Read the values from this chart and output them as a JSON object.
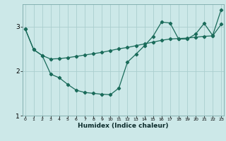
{
  "xlabel": "Humidex (Indice chaleur)",
  "background_color": "#cce8e8",
  "grid_color": "#aacece",
  "line_color": "#1a6b5a",
  "line1_x": [
    0,
    1,
    2,
    3,
    4,
    5,
    6,
    7,
    8,
    9,
    10,
    11,
    12,
    13,
    14,
    15,
    16,
    17,
    18,
    19,
    20,
    21,
    22,
    23
  ],
  "line1_y": [
    2.95,
    2.48,
    2.35,
    2.27,
    2.28,
    2.3,
    2.33,
    2.36,
    2.39,
    2.42,
    2.46,
    2.5,
    2.53,
    2.57,
    2.61,
    2.65,
    2.69,
    2.72,
    2.73,
    2.74,
    2.76,
    2.78,
    2.79,
    3.05
  ],
  "line2_x": [
    0,
    1,
    2,
    3,
    4,
    5,
    6,
    7,
    8,
    9,
    10,
    11,
    12,
    13,
    14,
    15,
    16,
    17,
    18,
    19,
    20,
    21,
    22,
    23
  ],
  "line2_y": [
    2.95,
    2.48,
    2.35,
    1.93,
    1.85,
    1.7,
    1.57,
    1.52,
    1.5,
    1.48,
    1.47,
    1.62,
    2.2,
    2.38,
    2.57,
    2.78,
    3.1,
    3.08,
    2.72,
    2.72,
    2.83,
    3.07,
    2.8,
    3.38
  ],
  "ylim": [
    1.0,
    3.5
  ],
  "yticks": [
    1,
    2,
    3
  ],
  "xlim": [
    -0.3,
    23.3
  ],
  "xticks": [
    0,
    1,
    2,
    3,
    4,
    5,
    6,
    7,
    8,
    9,
    10,
    11,
    12,
    13,
    14,
    15,
    16,
    17,
    18,
    19,
    20,
    21,
    22,
    23
  ],
  "marker_size": 2.2,
  "linewidth": 0.9
}
